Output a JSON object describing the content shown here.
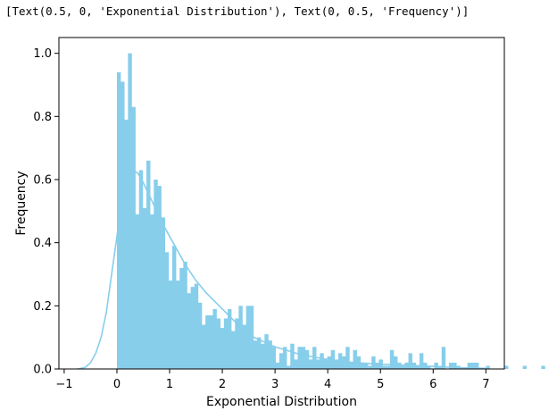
{
  "output_text": "[Text(0.5, 0, 'Exponential Distribution'), Text(0, 0.5, 'Frequency')]",
  "chart_data": {
    "type": "bar",
    "subtype": "histogram with density curve",
    "xlabel": "Exponential Distribution",
    "ylabel": "Frequency",
    "xlim": [
      -1.1,
      7.35
    ],
    "ylim": [
      0,
      1.05
    ],
    "xticks": [
      -1,
      0,
      1,
      2,
      3,
      4,
      5,
      6,
      7
    ],
    "xtick_labels": [
      "−1",
      "0",
      "1",
      "2",
      "3",
      "4",
      "5",
      "6",
      "7"
    ],
    "yticks": [
      0.0,
      0.2,
      0.4,
      0.6,
      0.8,
      1.0
    ],
    "ytick_labels": [
      "0.0",
      "0.2",
      "0.4",
      "0.6",
      "0.8",
      "1.0"
    ],
    "bar_color": "#87ceeb",
    "curve_color": "#87ceeb",
    "bin_start": 0.0,
    "bin_width": 0.07,
    "bin_heights": [
      0.94,
      0.91,
      0.79,
      1.0,
      0.83,
      0.49,
      0.63,
      0.51,
      0.66,
      0.49,
      0.6,
      0.58,
      0.48,
      0.37,
      0.28,
      0.39,
      0.28,
      0.32,
      0.34,
      0.24,
      0.26,
      0.27,
      0.21,
      0.14,
      0.17,
      0.17,
      0.19,
      0.16,
      0.13,
      0.16,
      0.19,
      0.12,
      0.16,
      0.2,
      0.14,
      0.2,
      0.2,
      0.09,
      0.1,
      0.08,
      0.11,
      0.09,
      0.07,
      0.02,
      0.05,
      0.07,
      0.01,
      0.08,
      0.03,
      0.07,
      0.07,
      0.06,
      0.03,
      0.07,
      0.03,
      0.05,
      0.03,
      0.04,
      0.06,
      0.03,
      0.05,
      0.04,
      0.07,
      0.02,
      0.06,
      0.04,
      0.02,
      0.02,
      0.01,
      0.04,
      0.02,
      0.03,
      0.01,
      0.01,
      0.06,
      0.04,
      0.02,
      0.01,
      0.02,
      0.05,
      0.02,
      0.01,
      0.05,
      0.02,
      0.01,
      0.0,
      0.02,
      0.01,
      0.07,
      0.0,
      0.02,
      0.02,
      0.01,
      0.0,
      0.0,
      0.02,
      0.02,
      0.02,
      0.0,
      0.0,
      0.01,
      0.0,
      0.0,
      0.0,
      0.0,
      0.01,
      0.0,
      0.0,
      0.0,
      0.0,
      0.01,
      0.0,
      0.0,
      0.0,
      0.0,
      0.01,
      0.0,
      0.0,
      0.0,
      0.0,
      0.01,
      0.0,
      0.0,
      0.0,
      0.0,
      0.01,
      0.0,
      0.0,
      0.0,
      0.0,
      0.01,
      0.0,
      0.0,
      0.0,
      0.0,
      0.0,
      0.0,
      0.0,
      0.0,
      0.0,
      0.0,
      0.0
    ],
    "kde_curve": {
      "x": [
        -0.75,
        -0.6,
        -0.5,
        -0.4,
        -0.3,
        -0.2,
        -0.1,
        0.0,
        0.1,
        0.2,
        0.3,
        0.4,
        0.5,
        0.7,
        0.9,
        1.1,
        1.3,
        1.5,
        1.7,
        2.0,
        2.3,
        2.6,
        3.0,
        3.5,
        4.0,
        4.5,
        5.0,
        5.5,
        6.0,
        6.5,
        7.0
      ],
      "y": [
        0.0,
        0.005,
        0.02,
        0.05,
        0.1,
        0.18,
        0.3,
        0.42,
        0.53,
        0.6,
        0.63,
        0.62,
        0.59,
        0.52,
        0.45,
        0.39,
        0.33,
        0.28,
        0.24,
        0.19,
        0.14,
        0.1,
        0.07,
        0.045,
        0.03,
        0.02,
        0.015,
        0.012,
        0.008,
        0.004,
        0.002
      ]
    }
  }
}
